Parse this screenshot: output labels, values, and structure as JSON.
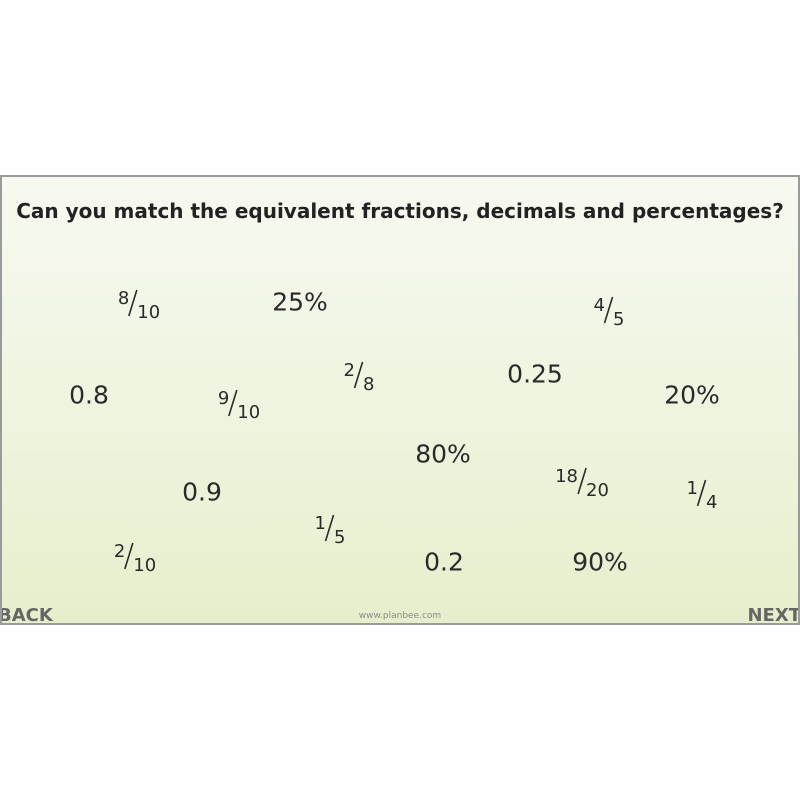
{
  "slide": {
    "title": "Can you match the equivalent fractions, decimals and percentages?",
    "items": [
      {
        "numerator": "8",
        "denominator": "10"
      },
      {
        "text": "25%"
      },
      {
        "numerator": "4",
        "denominator": "5"
      },
      {
        "numerator": "2",
        "denominator": "8"
      },
      {
        "text": "0.25"
      },
      {
        "text": "0.8"
      },
      {
        "numerator": "9",
        "denominator": "10"
      },
      {
        "text": "20%"
      },
      {
        "text": "80%"
      },
      {
        "numerator": "18",
        "denominator": "20"
      },
      {
        "text": "0.9"
      },
      {
        "numerator": "1",
        "denominator": "4"
      },
      {
        "numerator": "1",
        "denominator": "5"
      },
      {
        "numerator": "2",
        "denominator": "10"
      },
      {
        "text": "0.2"
      },
      {
        "text": "90%"
      }
    ],
    "footer": "www.planbee.com",
    "back": "BACK",
    "next": "NEXT"
  }
}
